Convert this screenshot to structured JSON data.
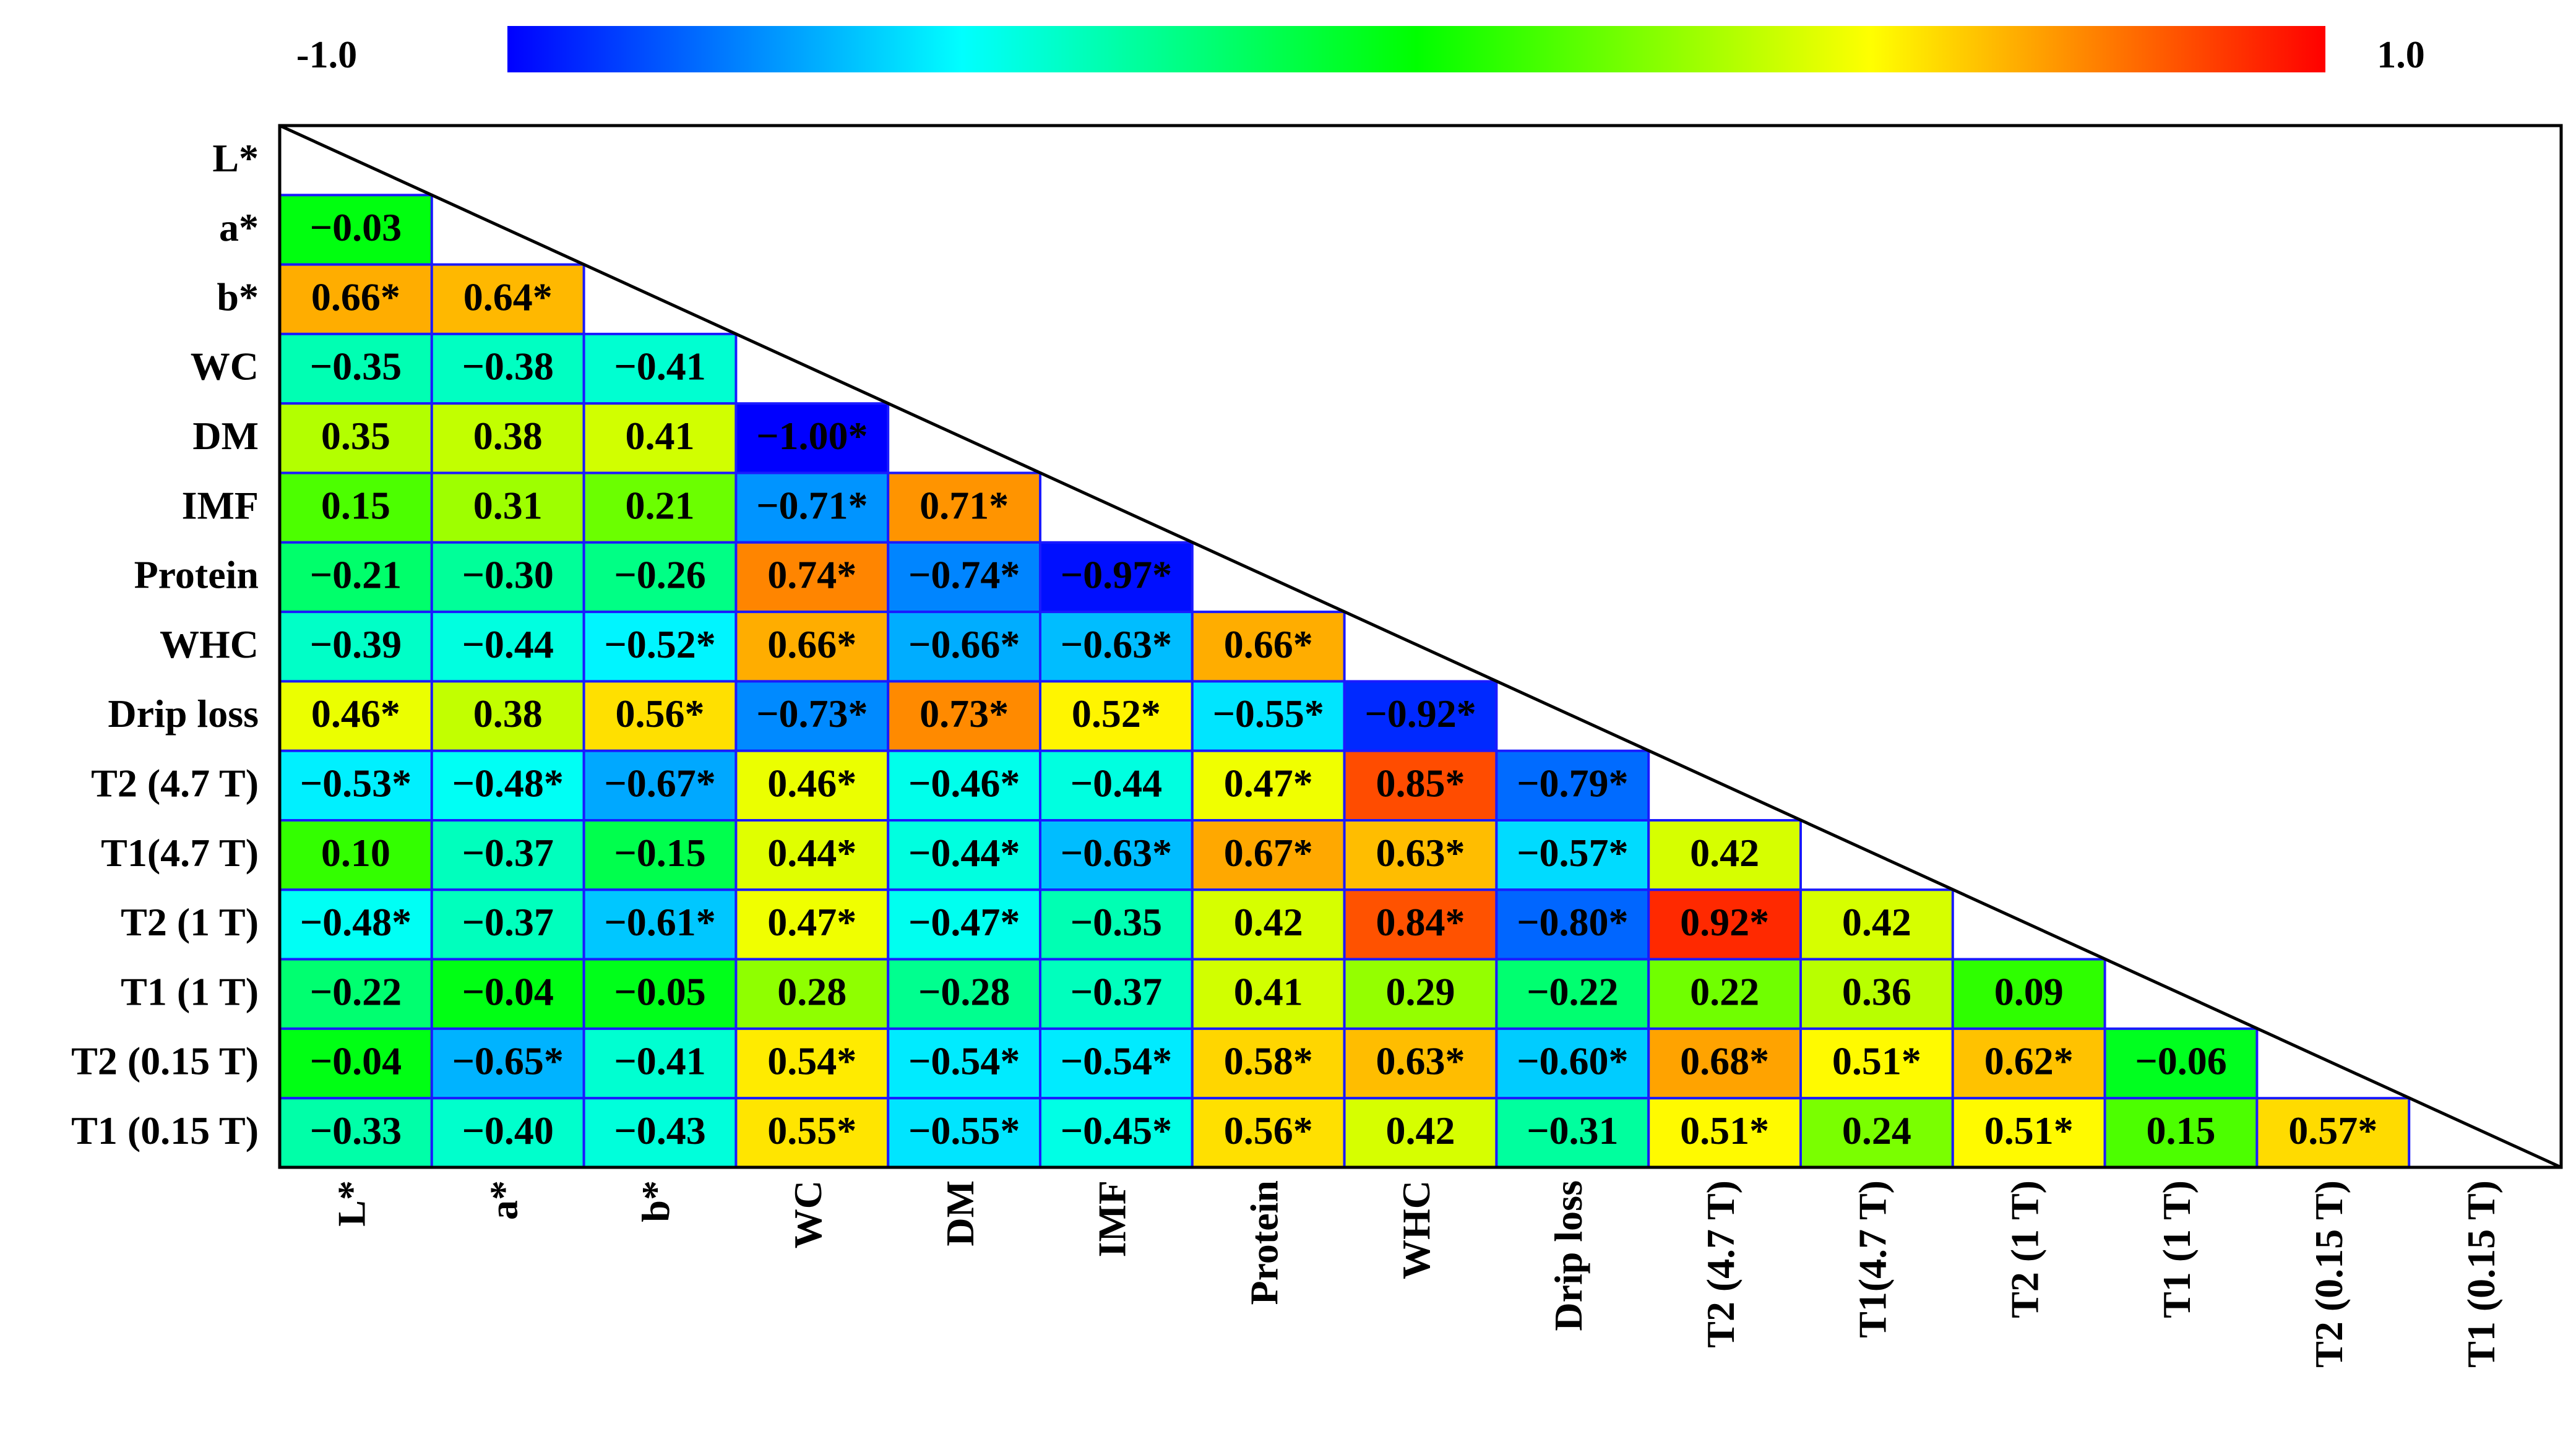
{
  "chart_data": {
    "type": "heatmap",
    "title": "",
    "colorbar": {
      "min_label": "-1.0",
      "max_label": "1.0",
      "min": -1.0,
      "max": 1.0
    },
    "variables": [
      "L*",
      "a*",
      "b*",
      "WC",
      "DM",
      "IMF",
      "Protein",
      "WHC",
      "Drip loss",
      "T2 (4.7 T)",
      "T1(4.7 T)",
      "T2 (1 T)",
      "T1 (1 T)",
      "T2 (0.15 T)",
      "T1 (0.15 T)"
    ],
    "row_labels": [
      "L*",
      "a*",
      "b*",
      "WC",
      "DM",
      "IMF",
      "Protein",
      "WHC",
      "Drip loss",
      "T2 (4.7 T)",
      "T1(4.7 T)",
      "T2 (1 T)",
      "T1 (1 T)",
      "T2 (0.15 T)",
      "T1 (0.15 T)"
    ],
    "col_labels": [
      "L*",
      "a*",
      "b*",
      "WC",
      "DM",
      "IMF",
      "Protein",
      "WHC",
      "Drip loss",
      "T2 (4.7 T)",
      "T1(4.7 T)",
      "T2 (1 T)",
      "T1 (1 T)",
      "T2 (0.15 T)",
      "T1 (0.15 T)"
    ],
    "cells": [
      [],
      [
        {
          "v": -0.03,
          "t": "−0.03"
        }
      ],
      [
        {
          "v": 0.66,
          "t": "0.66*"
        },
        {
          "v": 0.64,
          "t": "0.64*"
        }
      ],
      [
        {
          "v": -0.35,
          "t": "−0.35"
        },
        {
          "v": -0.38,
          "t": "−0.38"
        },
        {
          "v": -0.41,
          "t": "−0.41"
        }
      ],
      [
        {
          "v": 0.35,
          "t": "0.35"
        },
        {
          "v": 0.38,
          "t": "0.38"
        },
        {
          "v": 0.41,
          "t": "0.41"
        },
        {
          "v": -1.0,
          "t": "−1.00*"
        }
      ],
      [
        {
          "v": 0.15,
          "t": "0.15"
        },
        {
          "v": 0.31,
          "t": "0.31"
        },
        {
          "v": 0.21,
          "t": "0.21"
        },
        {
          "v": -0.71,
          "t": "−0.71*"
        },
        {
          "v": 0.71,
          "t": "0.71*"
        }
      ],
      [
        {
          "v": -0.21,
          "t": "−0.21"
        },
        {
          "v": -0.3,
          "t": "−0.30"
        },
        {
          "v": -0.26,
          "t": "−0.26"
        },
        {
          "v": 0.74,
          "t": "0.74*"
        },
        {
          "v": -0.74,
          "t": "−0.74*"
        },
        {
          "v": -0.97,
          "t": "−0.97*"
        }
      ],
      [
        {
          "v": -0.39,
          "t": "−0.39"
        },
        {
          "v": -0.44,
          "t": "−0.44"
        },
        {
          "v": -0.52,
          "t": "−0.52*"
        },
        {
          "v": 0.66,
          "t": "0.66*"
        },
        {
          "v": -0.66,
          "t": "−0.66*"
        },
        {
          "v": -0.63,
          "t": "−0.63*"
        },
        {
          "v": 0.66,
          "t": "0.66*"
        }
      ],
      [
        {
          "v": 0.46,
          "t": "0.46*"
        },
        {
          "v": 0.38,
          "t": "0.38"
        },
        {
          "v": 0.56,
          "t": "0.56*"
        },
        {
          "v": -0.73,
          "t": "−0.73*"
        },
        {
          "v": 0.73,
          "t": "0.73*"
        },
        {
          "v": 0.52,
          "t": "0.52*"
        },
        {
          "v": -0.55,
          "t": "−0.55*"
        },
        {
          "v": -0.92,
          "t": "−0.92*"
        }
      ],
      [
        {
          "v": -0.53,
          "t": "−0.53*"
        },
        {
          "v": -0.48,
          "t": "−0.48*"
        },
        {
          "v": -0.67,
          "t": "−0.67*"
        },
        {
          "v": 0.46,
          "t": "0.46*"
        },
        {
          "v": -0.46,
          "t": "−0.46*"
        },
        {
          "v": -0.44,
          "t": "−0.44"
        },
        {
          "v": 0.47,
          "t": "0.47*"
        },
        {
          "v": 0.85,
          "t": "0.85*"
        },
        {
          "v": -0.79,
          "t": "−0.79*"
        }
      ],
      [
        {
          "v": 0.1,
          "t": "0.10"
        },
        {
          "v": -0.37,
          "t": "−0.37"
        },
        {
          "v": -0.15,
          "t": "−0.15"
        },
        {
          "v": 0.44,
          "t": "0.44*"
        },
        {
          "v": -0.44,
          "t": "−0.44*"
        },
        {
          "v": -0.63,
          "t": "−0.63*"
        },
        {
          "v": 0.67,
          "t": "0.67*"
        },
        {
          "v": 0.63,
          "t": "0.63*"
        },
        {
          "v": -0.57,
          "t": "−0.57*"
        },
        {
          "v": 0.42,
          "t": "0.42"
        }
      ],
      [
        {
          "v": -0.48,
          "t": "−0.48*"
        },
        {
          "v": -0.37,
          "t": "−0.37"
        },
        {
          "v": -0.61,
          "t": "−0.61*"
        },
        {
          "v": 0.47,
          "t": "0.47*"
        },
        {
          "v": -0.47,
          "t": "−0.47*"
        },
        {
          "v": -0.35,
          "t": "−0.35"
        },
        {
          "v": 0.42,
          "t": "0.42"
        },
        {
          "v": 0.84,
          "t": "0.84*"
        },
        {
          "v": -0.8,
          "t": "−0.80*"
        },
        {
          "v": 0.92,
          "t": "0.92*"
        },
        {
          "v": 0.42,
          "t": "0.42"
        }
      ],
      [
        {
          "v": -0.22,
          "t": "−0.22"
        },
        {
          "v": -0.04,
          "t": "−0.04"
        },
        {
          "v": -0.05,
          "t": "−0.05"
        },
        {
          "v": 0.28,
          "t": "0.28"
        },
        {
          "v": -0.28,
          "t": "−0.28"
        },
        {
          "v": -0.37,
          "t": "−0.37"
        },
        {
          "v": 0.41,
          "t": "0.41"
        },
        {
          "v": 0.29,
          "t": "0.29"
        },
        {
          "v": -0.22,
          "t": "−0.22"
        },
        {
          "v": 0.22,
          "t": "0.22"
        },
        {
          "v": 0.36,
          "t": "0.36"
        },
        {
          "v": 0.09,
          "t": "0.09"
        }
      ],
      [
        {
          "v": -0.04,
          "t": "−0.04"
        },
        {
          "v": -0.65,
          "t": "−0.65*"
        },
        {
          "v": -0.41,
          "t": "−0.41"
        },
        {
          "v": 0.54,
          "t": "0.54*"
        },
        {
          "v": -0.54,
          "t": "−0.54*"
        },
        {
          "v": -0.54,
          "t": "−0.54*"
        },
        {
          "v": 0.58,
          "t": "0.58*"
        },
        {
          "v": 0.63,
          "t": "0.63*"
        },
        {
          "v": -0.6,
          "t": "−0.60*"
        },
        {
          "v": 0.68,
          "t": "0.68*"
        },
        {
          "v": 0.51,
          "t": "0.51*"
        },
        {
          "v": 0.62,
          "t": "0.62*"
        },
        {
          "v": -0.06,
          "t": "−0.06"
        }
      ],
      [
        {
          "v": -0.33,
          "t": "−0.33"
        },
        {
          "v": -0.4,
          "t": "−0.40"
        },
        {
          "v": -0.43,
          "t": "−0.43"
        },
        {
          "v": 0.55,
          "t": "0.55*"
        },
        {
          "v": -0.55,
          "t": "−0.55*"
        },
        {
          "v": -0.45,
          "t": "−0.45*"
        },
        {
          "v": 0.56,
          "t": "0.56*"
        },
        {
          "v": 0.42,
          "t": "0.42"
        },
        {
          "v": -0.31,
          "t": "−0.31"
        },
        {
          "v": 0.51,
          "t": "0.51*"
        },
        {
          "v": 0.24,
          "t": "0.24"
        },
        {
          "v": 0.51,
          "t": "0.51*"
        },
        {
          "v": 0.15,
          "t": "0.15"
        },
        {
          "v": 0.57,
          "t": "0.57*"
        }
      ]
    ],
    "significance_marker": "*",
    "legend": "top colorbar"
  },
  "colors": {
    "scale": [
      "#0000ff",
      "#00ffff",
      "#00ff00",
      "#ffff00",
      "#ff0000"
    ],
    "cell_border": "#1a1aff",
    "frame": "#000000"
  }
}
